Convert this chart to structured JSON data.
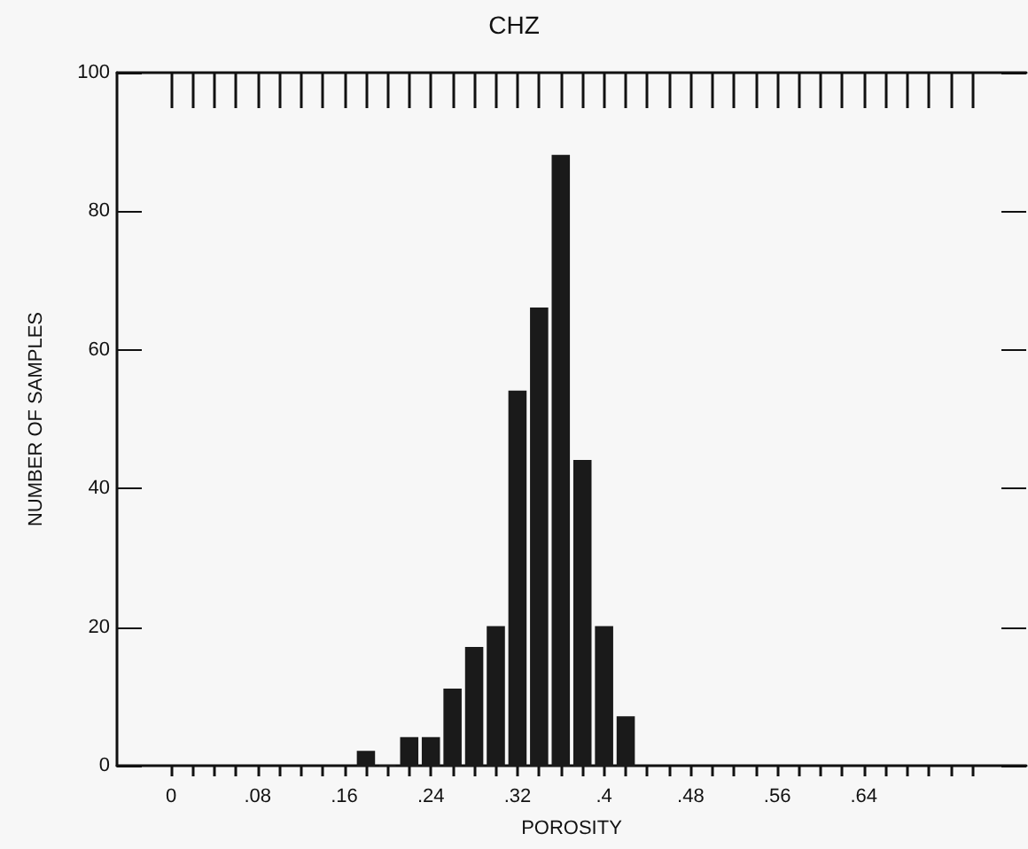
{
  "chart_data": {
    "type": "histogram",
    "title": "CHZ",
    "xlabel": "POROSITY",
    "ylabel": "NUMBER OF SAMPLES",
    "bins": [
      0.17,
      0.19,
      0.21,
      0.23,
      0.25,
      0.27,
      0.29,
      0.31,
      0.33,
      0.35,
      0.37,
      0.39,
      0.41,
      0.43
    ],
    "values": [
      2,
      0,
      4,
      4,
      11,
      17,
      20,
      54,
      66,
      88,
      44,
      20,
      7
    ],
    "color": "#1a1a1a",
    "xlim": [
      -0.05,
      0.79
    ],
    "xticks": [
      0,
      {
        "value": 0.02,
        "label": null
      },
      {
        "value": 0.04,
        "label": null
      },
      {
        "value": 0.06,
        "label": null
      },
      {
        "value": 0.08,
        "label": ".08"
      },
      {
        "value": 0.1,
        "label": null
      },
      {
        "value": 0.12,
        "label": null
      },
      {
        "value": 0.14,
        "label": null
      },
      {
        "value": 0.16,
        "label": ".16"
      },
      {
        "value": 0.18,
        "label": null
      },
      {
        "value": 0.2,
        "label": null
      },
      {
        "value": 0.22,
        "label": null
      },
      {
        "value": 0.24,
        "label": ".24"
      },
      {
        "value": 0.26,
        "label": null
      },
      {
        "value": 0.28,
        "label": null
      },
      {
        "value": 0.3,
        "label": null
      },
      {
        "value": 0.32,
        "label": ".32"
      },
      {
        "value": 0.34,
        "label": null
      },
      {
        "value": 0.36,
        "label": null
      },
      {
        "value": 0.38,
        "label": null
      },
      {
        "value": 0.4,
        "label": ".4"
      },
      {
        "value": 0.42,
        "label": null
      },
      {
        "value": 0.44,
        "label": null
      },
      {
        "value": 0.46,
        "label": null
      },
      {
        "value": 0.48,
        "label": ".48"
      },
      {
        "value": 0.5,
        "label": null
      },
      {
        "value": 0.52,
        "label": null
      },
      {
        "value": 0.54,
        "label": null
      },
      {
        "value": 0.56,
        "label": ".56"
      },
      {
        "value": 0.58,
        "label": null
      },
      {
        "value": 0.6,
        "label": null
      },
      {
        "value": 0.62,
        "label": null
      },
      {
        "value": 0.64,
        "label": ".64"
      },
      {
        "value": 0.66,
        "label": null
      },
      {
        "value": 0.68,
        "label": null
      },
      {
        "value": 0.7,
        "label": null
      },
      {
        "value": 0.72,
        "label": null
      },
      {
        "value": 0.74,
        "label": null
      }
    ],
    "ylim": [
      0,
      100
    ],
    "yticks": [
      0,
      20,
      40,
      60,
      80,
      100
    ],
    "grid": false
  }
}
